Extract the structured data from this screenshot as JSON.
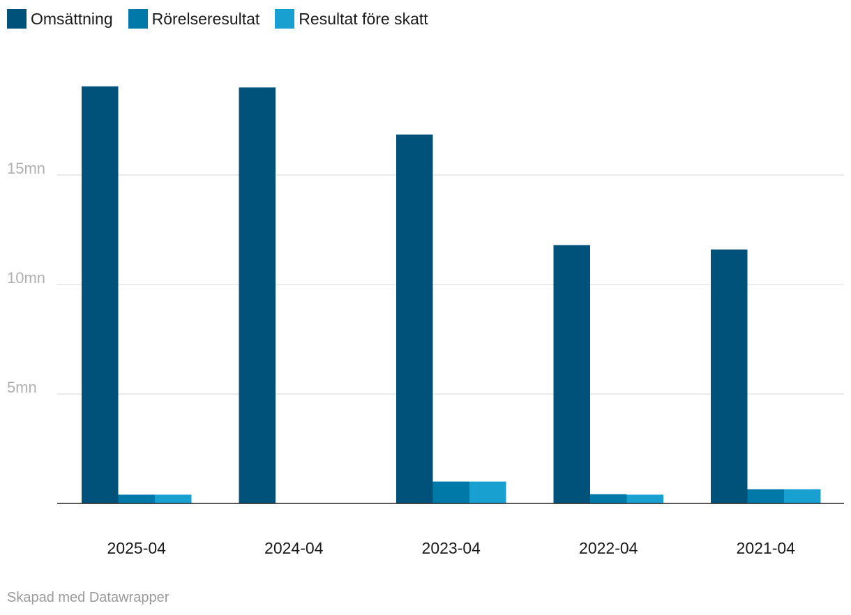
{
  "chart_data": {
    "type": "bar",
    "categories": [
      "2025-04",
      "2024-04",
      "2023-04",
      "2022-04",
      "2021-04"
    ],
    "series": [
      {
        "name": "Omsättning",
        "color": "#00527a",
        "values": [
          19.05,
          19.0,
          16.85,
          11.8,
          11.6
        ]
      },
      {
        "name": "Rörelseresultat",
        "color": "#0078a8",
        "values": [
          0.4,
          0.0,
          1.0,
          0.42,
          0.65
        ]
      },
      {
        "name": "Resultat före skatt",
        "color": "#18a1d0",
        "values": [
          0.4,
          0.0,
          1.0,
          0.4,
          0.65
        ]
      }
    ],
    "yticks": [
      {
        "value": 5,
        "label": "5mn"
      },
      {
        "value": 10,
        "label": "10mn"
      },
      {
        "value": 15,
        "label": "15mn"
      }
    ],
    "ylim": [
      0,
      20.5
    ],
    "grid": true,
    "legend_position": "top-left"
  },
  "footer": {
    "credit": "Skapad med Datawrapper"
  }
}
